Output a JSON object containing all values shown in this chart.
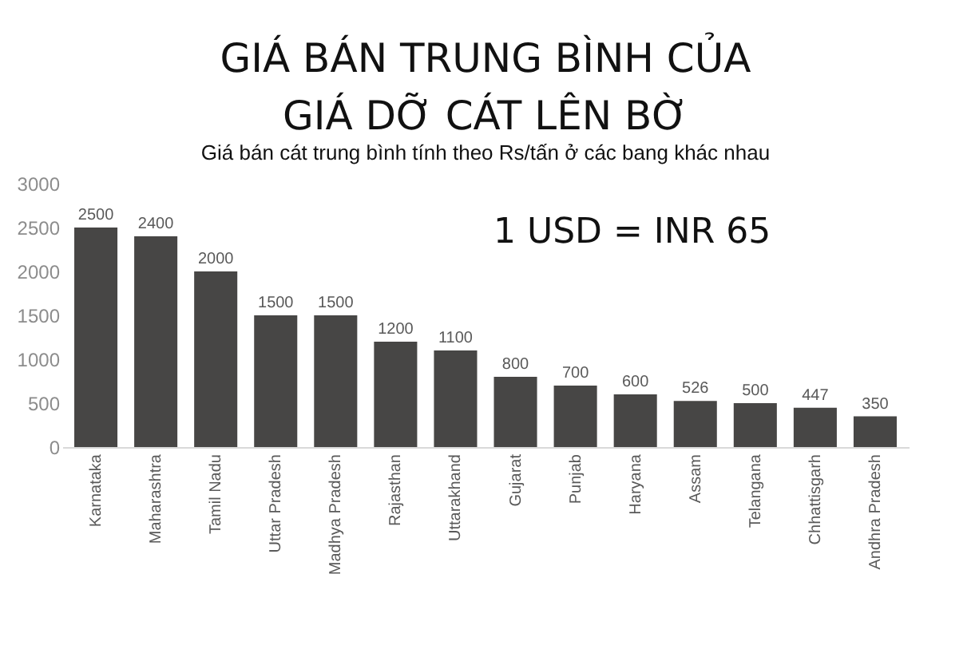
{
  "chart_data": {
    "type": "bar",
    "title": "GIÁ BÁN TRUNG BÌNH CỦA\nGIÁ DỠ CÁT LÊN BỜ",
    "subtitle": "Giá bán cát trung bình tính theo Rs/tấn ở các bang khác nhau",
    "categories": [
      "Karnataka",
      "Maharashtra",
      "Tamil Nadu",
      "Uttar Pradesh",
      "Madhya Pradesh",
      "Rajasthan",
      "Uttarakhand",
      "Gujarat",
      "Punjab",
      "Haryana",
      "Assam",
      "Telangana",
      "Chhattisgarh",
      "Andhra Pradesh"
    ],
    "values": [
      2500,
      2400,
      2000,
      1500,
      1500,
      1200,
      1100,
      800,
      700,
      600,
      526,
      500,
      447,
      350
    ],
    "color": "#474645",
    "ylim": [
      0,
      3000
    ],
    "yticks": [
      0,
      500,
      1000,
      1500,
      2000,
      2500,
      3000
    ],
    "grid": false,
    "data_labels": true,
    "annotations": [
      "1 USD = INR 65"
    ]
  }
}
